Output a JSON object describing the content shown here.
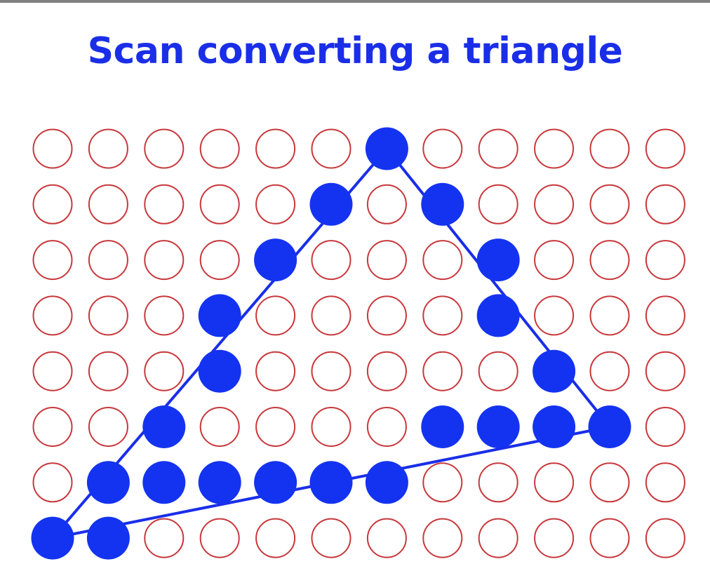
{
  "title": "Scan converting a triangle",
  "colors": {
    "title": "#1a2ee8",
    "filled_pixel": "#1433f0",
    "empty_pixel_stroke": "#c8383c",
    "edge": "#1a2ee8",
    "top_rule": "#7f7f7f"
  },
  "grid": {
    "columns": 12,
    "rows": 8,
    "filled_pixels": [
      [
        6,
        0
      ],
      [
        5,
        1
      ],
      [
        7,
        1
      ],
      [
        4,
        2
      ],
      [
        8,
        2
      ],
      [
        3,
        3
      ],
      [
        8,
        3
      ],
      [
        3,
        4
      ],
      [
        9,
        4
      ],
      [
        2,
        5
      ],
      [
        7,
        5
      ],
      [
        8,
        5
      ],
      [
        9,
        5
      ],
      [
        10,
        5
      ],
      [
        1,
        6
      ],
      [
        2,
        6
      ],
      [
        3,
        6
      ],
      [
        4,
        6
      ],
      [
        5,
        6
      ],
      [
        6,
        6
      ],
      [
        0,
        7
      ],
      [
        1,
        7
      ]
    ]
  },
  "triangle": {
    "vertices": [
      [
        6,
        0
      ],
      [
        10,
        5
      ],
      [
        0,
        7
      ]
    ]
  }
}
